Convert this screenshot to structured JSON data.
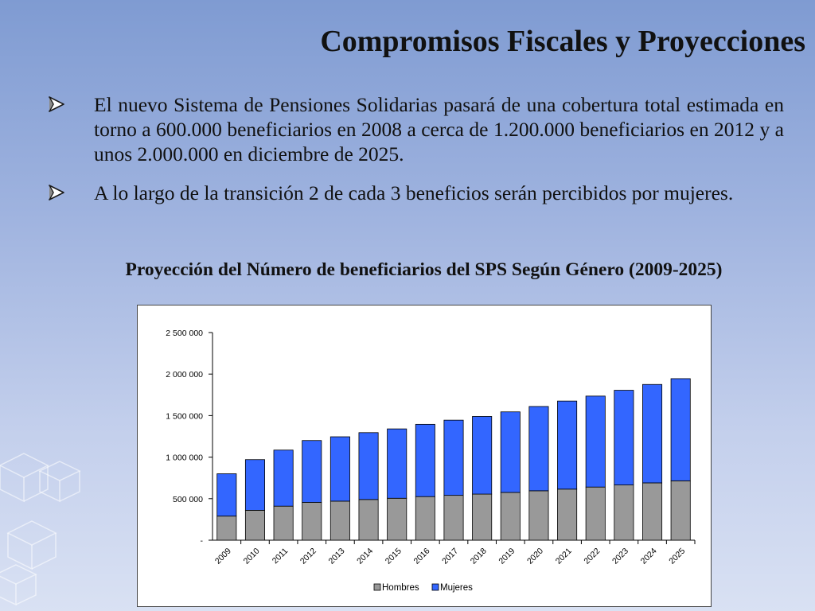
{
  "slide": {
    "title": "Compromisos Fiscales y Proyecciones",
    "bullets": [
      "El nuevo Sistema de Pensiones Solidarias pasará de una cobertura total estimada en torno a 600.000 beneficiarios en 2008 a cerca de 1.200.000 beneficiarios en 2012 y a unos 2.000.000 en diciembre de 2025.",
      "A lo largo de la transición 2 de cada 3 beneficios serán percibidos por mujeres."
    ],
    "bullet_icon": "arrow-bullet-icon",
    "accent_color": "#1a1a1a"
  },
  "chart_data": {
    "type": "bar",
    "stacked": true,
    "title": "Proyección del Número de beneficiarios del SPS Según Género (2009-2025)",
    "categories": [
      "2009",
      "2010",
      "2011",
      "2012",
      "2013",
      "2014",
      "2015",
      "2016",
      "2017",
      "2018",
      "2019",
      "2020",
      "2021",
      "2022",
      "2023",
      "2024",
      "2025"
    ],
    "series": [
      {
        "name": "Hombres",
        "color": "#999999",
        "values": [
          290000,
          360000,
          410000,
          455000,
          470000,
          490000,
          505000,
          525000,
          540000,
          555000,
          575000,
          595000,
          615000,
          640000,
          665000,
          690000,
          715000
        ]
      },
      {
        "name": "Mujeres",
        "color": "#3366ff",
        "values": [
          510000,
          610000,
          675000,
          745000,
          775000,
          805000,
          835000,
          870000,
          905000,
          935000,
          970000,
          1015000,
          1060000,
          1095000,
          1140000,
          1185000,
          1230000
        ]
      }
    ],
    "ylim": [
      0,
      2500000
    ],
    "yticks": [
      {
        "value": 0,
        "label": "-"
      },
      {
        "value": 500000,
        "label": "500 000"
      },
      {
        "value": 1000000,
        "label": "1 000 000"
      },
      {
        "value": 1500000,
        "label": "1 500 000"
      },
      {
        "value": 2000000,
        "label": "2 000 000"
      },
      {
        "value": 2500000,
        "label": "2 500 000"
      }
    ],
    "legend_position": "bottom",
    "grid": false
  }
}
